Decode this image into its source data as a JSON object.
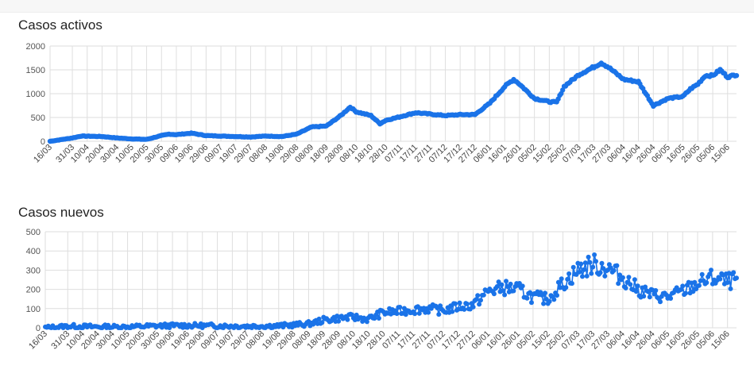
{
  "charts": {
    "active": {
      "title": "Casos activos",
      "yticks": [
        "0",
        "500",
        "1000",
        "1500",
        "2000"
      ],
      "xticks": [
        "16/03",
        "31/03",
        "10/04",
        "20/04",
        "30/04",
        "10/05",
        "20/05",
        "30/05",
        "09/06",
        "19/06",
        "29/06",
        "09/07",
        "19/07",
        "29/07",
        "08/08",
        "19/08",
        "29/08",
        "08/09",
        "18/09",
        "28/09",
        "08/10",
        "18/10",
        "28/10",
        "07/11",
        "17/11",
        "27/11",
        "07/12",
        "17/12",
        "27/12",
        "06/01",
        "16/01",
        "26/01",
        "05/02",
        "15/02",
        "25/02",
        "07/03",
        "17/03",
        "27/03",
        "06/04",
        "16/04",
        "26/04",
        "06/05",
        "16/05",
        "26/05",
        "05/06",
        "15/06"
      ]
    },
    "new": {
      "title": "Casos nuevos",
      "yticks": [
        "0",
        "100",
        "200",
        "300",
        "400",
        "500"
      ],
      "xticks": [
        "16/03",
        "31/03",
        "10/04",
        "20/04",
        "30/04",
        "10/05",
        "20/05",
        "30/05",
        "09/06",
        "19/06",
        "29/06",
        "09/07",
        "19/07",
        "29/07",
        "08/08",
        "19/08",
        "29/08",
        "08/09",
        "18/09",
        "28/09",
        "08/10",
        "18/10",
        "28/10",
        "07/11",
        "17/11",
        "27/11",
        "07/12",
        "17/12",
        "27/12",
        "06/01",
        "16/01",
        "26/01",
        "05/02",
        "15/02",
        "25/02",
        "07/03",
        "17/03",
        "27/03",
        "06/04",
        "16/04",
        "26/04",
        "06/05",
        "16/05",
        "26/05",
        "05/06",
        "15/06"
      ]
    }
  },
  "chart_data": [
    {
      "type": "line",
      "title": "Casos activos",
      "series_color": "#1a73e8",
      "ylim": [
        0,
        2000
      ],
      "grid": true,
      "legend": "none",
      "x_range": [
        "16/03",
        "21/06"
      ],
      "points": [
        [
          "16/03",
          0
        ],
        [
          "31/03",
          70
        ],
        [
          "06/04",
          110
        ],
        [
          "20/04",
          100
        ],
        [
          "30/04",
          70
        ],
        [
          "10/05",
          50
        ],
        [
          "20/05",
          40
        ],
        [
          "30/05",
          120
        ],
        [
          "04/06",
          150
        ],
        [
          "09/06",
          140
        ],
        [
          "19/06",
          170
        ],
        [
          "29/06",
          120
        ],
        [
          "09/07",
          110
        ],
        [
          "19/07",
          100
        ],
        [
          "29/07",
          90
        ],
        [
          "08/08",
          110
        ],
        [
          "19/08",
          100
        ],
        [
          "29/08",
          150
        ],
        [
          "08/09",
          300
        ],
        [
          "18/09",
          320
        ],
        [
          "28/09",
          550
        ],
        [
          "04/10",
          720
        ],
        [
          "08/10",
          620
        ],
        [
          "18/10",
          540
        ],
        [
          "24/10",
          370
        ],
        [
          "28/10",
          440
        ],
        [
          "07/11",
          520
        ],
        [
          "17/11",
          600
        ],
        [
          "27/11",
          570
        ],
        [
          "07/12",
          540
        ],
        [
          "17/12",
          560
        ],
        [
          "27/12",
          560
        ],
        [
          "06/01",
          800
        ],
        [
          "16/01",
          1150
        ],
        [
          "22/01",
          1300
        ],
        [
          "26/01",
          1200
        ],
        [
          "05/02",
          900
        ],
        [
          "15/02",
          830
        ],
        [
          "20/02",
          820
        ],
        [
          "25/02",
          1150
        ],
        [
          "07/03",
          1400
        ],
        [
          "17/03",
          1560
        ],
        [
          "22/03",
          1650
        ],
        [
          "27/03",
          1550
        ],
        [
          "06/04",
          1300
        ],
        [
          "16/04",
          1250
        ],
        [
          "26/04",
          750
        ],
        [
          "06/05",
          900
        ],
        [
          "16/05",
          940
        ],
        [
          "21/05",
          1100
        ],
        [
          "26/05",
          1200
        ],
        [
          "31/05",
          1380
        ],
        [
          "05/06",
          1380
        ],
        [
          "10/06",
          1500
        ],
        [
          "15/06",
          1350
        ],
        [
          "21/06",
          1400
        ]
      ]
    },
    {
      "type": "line",
      "title": "Casos nuevos",
      "series_color": "#1a73e8",
      "ylim": [
        0,
        500
      ],
      "grid": true,
      "legend": "none",
      "x_range": [
        "16/03",
        "21/06"
      ],
      "points": [
        [
          "16/03",
          0
        ],
        [
          "31/03",
          8
        ],
        [
          "20/04",
          5
        ],
        [
          "10/05",
          5
        ],
        [
          "30/05",
          10
        ],
        [
          "19/06",
          12
        ],
        [
          "09/07",
          10
        ],
        [
          "29/07",
          8
        ],
        [
          "19/08",
          10
        ],
        [
          "08/09",
          20
        ],
        [
          "18/09",
          40
        ],
        [
          "28/09",
          50
        ],
        [
          "08/10",
          55
        ],
        [
          "18/10",
          45
        ],
        [
          "28/10",
          80
        ],
        [
          "07/11",
          85
        ],
        [
          "17/11",
          95
        ],
        [
          "27/11",
          100
        ],
        [
          "07/12",
          90
        ],
        [
          "17/12",
          110
        ],
        [
          "27/12",
          120
        ],
        [
          "06/01",
          190
        ],
        [
          "16/01",
          210
        ],
        [
          "26/01",
          200
        ],
        [
          "05/02",
          160
        ],
        [
          "15/02",
          150
        ],
        [
          "25/02",
          230
        ],
        [
          "07/03",
          300
        ],
        [
          "17/03",
          330
        ],
        [
          "27/03",
          310
        ],
        [
          "06/04",
          260
        ],
        [
          "16/04",
          200
        ],
        [
          "26/04",
          170
        ],
        [
          "06/05",
          160
        ],
        [
          "16/05",
          190
        ],
        [
          "26/05",
          230
        ],
        [
          "05/06",
          260
        ],
        [
          "15/06",
          240
        ],
        [
          "21/06",
          250
        ]
      ]
    }
  ]
}
